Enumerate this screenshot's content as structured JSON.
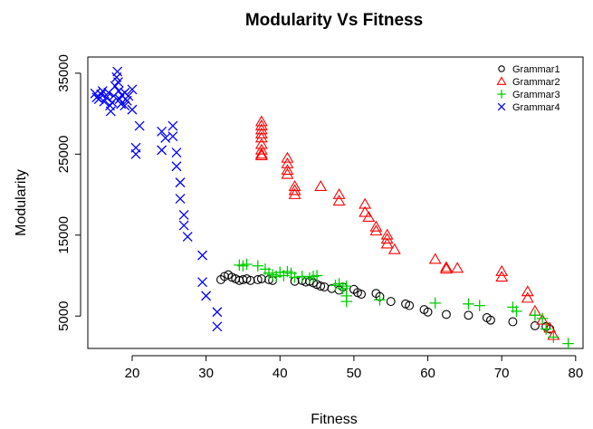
{
  "chart_data": {
    "type": "scatter",
    "title": "Modularity Vs Fitness",
    "xlabel": "Fitness",
    "ylabel": "Modularity",
    "xlim": [
      14,
      81
    ],
    "ylim": [
      1000,
      37000
    ],
    "xticks": [
      20,
      30,
      40,
      50,
      60,
      70,
      80
    ],
    "yticks": [
      5000,
      15000,
      25000,
      35000
    ],
    "grid": false,
    "legend_position": "top-right",
    "series": [
      {
        "name": "Grammar1",
        "marker": "circle",
        "color": "#000000",
        "points": [
          [
            32,
            9500
          ],
          [
            32.5,
            9900
          ],
          [
            33,
            10100
          ],
          [
            33.5,
            9800
          ],
          [
            34,
            9600
          ],
          [
            34.5,
            9400
          ],
          [
            35,
            9500
          ],
          [
            35.5,
            9600
          ],
          [
            36,
            9400
          ],
          [
            37,
            9500
          ],
          [
            37.5,
            9600
          ],
          [
            38.5,
            9500
          ],
          [
            39,
            9400
          ],
          [
            42,
            9300
          ],
          [
            43,
            9400
          ],
          [
            43.5,
            9200
          ],
          [
            44,
            9300
          ],
          [
            44.5,
            9100
          ],
          [
            45,
            8900
          ],
          [
            45.5,
            8700
          ],
          [
            46,
            8600
          ],
          [
            47,
            8400
          ],
          [
            48,
            8200
          ],
          [
            48.5,
            8600
          ],
          [
            50,
            8300
          ],
          [
            50.5,
            7900
          ],
          [
            51,
            7700
          ],
          [
            53,
            7800
          ],
          [
            53.5,
            7400
          ],
          [
            55,
            6800
          ],
          [
            57,
            6500
          ],
          [
            57.5,
            6300
          ],
          [
            59.5,
            5800
          ],
          [
            60,
            5500
          ],
          [
            62.5,
            5200
          ],
          [
            65.5,
            5100
          ],
          [
            68,
            4800
          ],
          [
            68.5,
            4500
          ],
          [
            71.5,
            4300
          ],
          [
            74.5,
            3800
          ],
          [
            76,
            3700
          ],
          [
            76.5,
            3400
          ]
        ]
      },
      {
        "name": "Grammar2",
        "marker": "triangle",
        "color": "#ff0000",
        "points": [
          [
            37.5,
            29000
          ],
          [
            37.5,
            28500
          ],
          [
            37.5,
            28000
          ],
          [
            37.5,
            27500
          ],
          [
            37.5,
            27000
          ],
          [
            37.5,
            26200
          ],
          [
            37.5,
            25500
          ],
          [
            37.5,
            25000
          ],
          [
            37.5,
            24800
          ],
          [
            41,
            24500
          ],
          [
            41,
            23800
          ],
          [
            41,
            23000
          ],
          [
            41,
            22500
          ],
          [
            42,
            21000
          ],
          [
            42,
            20500
          ],
          [
            42,
            20000
          ],
          [
            45.5,
            21000
          ],
          [
            48,
            20000
          ],
          [
            48,
            19200
          ],
          [
            51.5,
            18800
          ],
          [
            51.5,
            17800
          ],
          [
            52,
            17200
          ],
          [
            53,
            16000
          ],
          [
            53,
            15500
          ],
          [
            54.5,
            15000
          ],
          [
            54.5,
            14500
          ],
          [
            54.5,
            13900
          ],
          [
            55.5,
            13200
          ],
          [
            61,
            12000
          ],
          [
            62.5,
            11000
          ],
          [
            62.5,
            10800
          ],
          [
            64,
            10900
          ],
          [
            70,
            10500
          ],
          [
            70,
            9800
          ],
          [
            73.5,
            8000
          ],
          [
            73.5,
            7200
          ],
          [
            74.5,
            5600
          ],
          [
            75.5,
            4500
          ],
          [
            76.5,
            3500
          ],
          [
            77,
            2600
          ]
        ]
      },
      {
        "name": "Grammar3",
        "marker": "plus",
        "color": "#00cc00",
        "points": [
          [
            34.5,
            11300
          ],
          [
            35,
            11200
          ],
          [
            35.5,
            11400
          ],
          [
            37,
            11200
          ],
          [
            38,
            10800
          ],
          [
            38.5,
            10300
          ],
          [
            39,
            10100
          ],
          [
            39.5,
            9900
          ],
          [
            40,
            10400
          ],
          [
            40.5,
            10000
          ],
          [
            41,
            10500
          ],
          [
            41.5,
            10300
          ],
          [
            42,
            9800
          ],
          [
            43,
            9900
          ],
          [
            44,
            9700
          ],
          [
            44.5,
            9900
          ],
          [
            45,
            10000
          ],
          [
            47.5,
            8800
          ],
          [
            48,
            9000
          ],
          [
            48.5,
            8400
          ],
          [
            49,
            8700
          ],
          [
            49,
            7500
          ],
          [
            49,
            6800
          ],
          [
            53.5,
            7000
          ],
          [
            61,
            6600
          ],
          [
            65.5,
            6500
          ],
          [
            67,
            6300
          ],
          [
            71.5,
            6100
          ],
          [
            72,
            5600
          ],
          [
            74.5,
            5100
          ],
          [
            75.5,
            4700
          ],
          [
            76,
            3400
          ],
          [
            77,
            2400
          ],
          [
            79,
            1600
          ]
        ]
      },
      {
        "name": "Grammar4",
        "marker": "x",
        "color": "#0000ff",
        "points": [
          [
            15,
            32500
          ],
          [
            15.2,
            32000
          ],
          [
            15.5,
            31800
          ],
          [
            15.8,
            32400
          ],
          [
            16,
            32800
          ],
          [
            16.2,
            31500
          ],
          [
            16.5,
            32000
          ],
          [
            16.8,
            32600
          ],
          [
            17,
            31000
          ],
          [
            17.1,
            30300
          ],
          [
            17.3,
            31400
          ],
          [
            17.5,
            32200
          ],
          [
            17.7,
            33400
          ],
          [
            17.9,
            34500
          ],
          [
            18,
            35200
          ],
          [
            18.1,
            33900
          ],
          [
            18.2,
            32800
          ],
          [
            18.3,
            31800
          ],
          [
            18.5,
            31200
          ],
          [
            18.6,
            32300
          ],
          [
            19,
            32600
          ],
          [
            19,
            31000
          ],
          [
            19.3,
            31600
          ],
          [
            19.5,
            32200
          ],
          [
            20,
            33000
          ],
          [
            20,
            30500
          ],
          [
            20.5,
            25000
          ],
          [
            20.5,
            25800
          ],
          [
            21,
            28500
          ],
          [
            24,
            27800
          ],
          [
            24.5,
            27000
          ],
          [
            24,
            25500
          ],
          [
            25.5,
            28500
          ],
          [
            25.5,
            27200
          ],
          [
            26,
            25200
          ],
          [
            26,
            23500
          ],
          [
            26.5,
            21500
          ],
          [
            26.5,
            19500
          ],
          [
            27,
            17500
          ],
          [
            27,
            16200
          ],
          [
            27.5,
            14800
          ],
          [
            29.5,
            12500
          ],
          [
            29.5,
            9200
          ],
          [
            30,
            7500
          ],
          [
            31.5,
            5500
          ],
          [
            31.5,
            3700
          ]
        ]
      }
    ]
  }
}
